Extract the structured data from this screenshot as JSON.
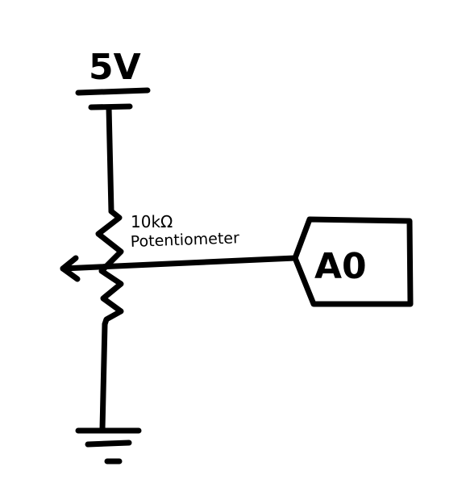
{
  "supply": {
    "label": "5V"
  },
  "potentiometer": {
    "value": "10kΩ",
    "name": "Potentiometer"
  },
  "output_port": {
    "label": "A0"
  },
  "colors": {
    "ink": "#000000",
    "background": "#ffffff"
  },
  "icons": [
    "power-supply-icon",
    "ground-icon",
    "potentiometer-icon",
    "wiper-arrow-icon",
    "port-tag-icon"
  ]
}
